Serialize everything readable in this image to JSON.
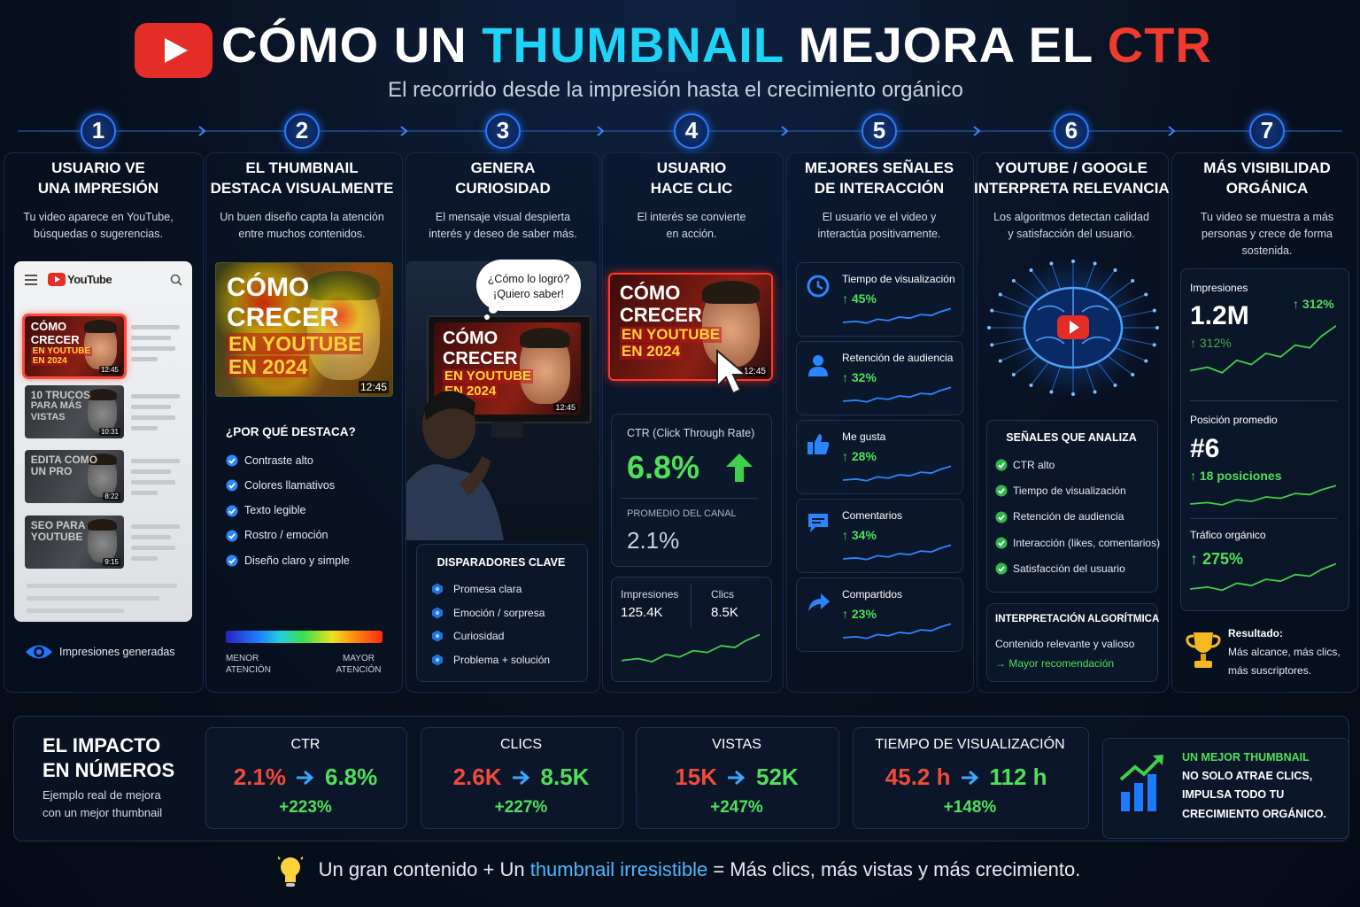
{
  "header": {
    "title": [
      "CÓMO UN ",
      "THUMBNAIL",
      " MEJORA EL ",
      "CTR"
    ],
    "subtitle": "El recorrido desde la impresión hasta el crecimiento orgánico"
  },
  "steps": [
    {
      "number": "1",
      "title": [
        "USUARIO VE",
        "UNA IMPRESIÓN"
      ],
      "description": [
        "Tu video aparece en YouTube,",
        "búsquedas o sugerencias."
      ]
    },
    {
      "number": "2",
      "title": [
        "EL THUMBNAIL",
        "DESTACA VISUALMENTE"
      ],
      "description": [
        "Un buen diseño capta la atención",
        "entre muchos contenidos."
      ]
    },
    {
      "number": "3",
      "title": [
        "GENERA",
        "CURIOSIDAD"
      ],
      "description": [
        "El mensaje visual despierta",
        "interés y deseo de saber más."
      ]
    },
    {
      "number": "4",
      "title": [
        "USUARIO",
        "HACE CLIC"
      ],
      "description": [
        "El interés se convierte",
        "en acción."
      ]
    },
    {
      "number": "5",
      "title": [
        "MEJORES SEÑALES",
        "DE INTERACCIÓN"
      ],
      "description": [
        "El usuario ve el video y",
        "interactúa positivamente."
      ]
    },
    {
      "number": "6",
      "title": [
        "YOUTUBE / GOOGLE",
        "INTERPRETA RELEVANCIA"
      ],
      "description": [
        "Los algoritmos detectan calidad",
        "y satisfacción del usuario."
      ]
    },
    {
      "number": "7",
      "title": [
        "MÁS VISIBILIDAD",
        "ORGÁNICA"
      ],
      "description": [
        "Tu video se muestra a más",
        "personas y crece de forma",
        "sostenida."
      ]
    }
  ],
  "feed": {
    "logo": "YouTube",
    "videos": [
      {
        "lines": [
          "CÓMO",
          "CRECER",
          "EN YOUTUBE",
          "EN 2024"
        ],
        "duration": "12:45"
      },
      {
        "lines": [
          "10 TRUCOS",
          "PARA MÁS",
          "VISTAS"
        ],
        "duration": "10:31"
      },
      {
        "lines": [
          "EDITA COMO",
          "UN PRO"
        ],
        "duration": "8:22"
      },
      {
        "lines": [
          "SEO PARA",
          "YOUTUBE"
        ],
        "duration": "9:15"
      }
    ],
    "caption": "Impresiones generadas"
  },
  "thumbnail": {
    "lines": [
      "CÓMO",
      "CRECER",
      "EN YOUTUBE",
      "EN 2024"
    ],
    "duration": "12:45"
  },
  "highlight": {
    "heading": "¿POR QUÉ DESTACA?",
    "items": [
      "Contraste alto",
      "Colores llamativos",
      "Texto legible",
      "Rostro / emoción",
      "Diseño claro y simple"
    ],
    "scale_low": [
      "MENOR",
      "ATENCIÓN"
    ],
    "scale_high": [
      "MAYOR",
      "ATENCIÓN"
    ]
  },
  "curiosity": {
    "bubble": [
      "¿Cómo lo logró?",
      "¡Quiero saber!"
    ],
    "heading": "DISPARADORES CLAVE",
    "items": [
      "Promesa clara",
      "Emoción / sorpresa",
      "Curiosidad",
      "Problema + solución"
    ]
  },
  "click": {
    "ctr_label": "CTR (Click Through Rate)",
    "ctr": "6.8%",
    "average_label": "PROMEDIO DEL CANAL",
    "average": "2.1%",
    "impressions_label": "Impresiones",
    "impressions": "125.4K",
    "clicks_label": "Clics",
    "clicks": "8.5K"
  },
  "signals": [
    {
      "label": "Tiempo de visualización",
      "change": "↑ 45%"
    },
    {
      "label": "Retención de audiencia",
      "change": "↑ 32%"
    },
    {
      "label": "Me gusta",
      "change": "↑ 28%"
    },
    {
      "label": "Comentarios",
      "change": "↑ 34%"
    },
    {
      "label": "Compartidos",
      "change": "↑ 23%"
    }
  ],
  "algorithm": {
    "heading": "SEÑALES QUE ANALIZA",
    "items": [
      "CTR alto",
      "Tiempo de visualización",
      "Retención de audiencia",
      "Interacción (likes, comentarios)",
      "Satisfacción del usuario"
    ],
    "interpretation_heading": "INTERPRETACIÓN ALGORÍTMICA",
    "interpretation": "Contenido relevante y valioso",
    "outcome": "→ Mayor recomendación"
  },
  "visibility": {
    "impressions": {
      "label": "Impresiones",
      "value": "1.2M",
      "badge": "↑ 312%",
      "change": "↑ 312%"
    },
    "position": {
      "label": "Posición promedio",
      "value": "#6",
      "change": "↑ 18 posiciones"
    },
    "traffic": {
      "label": "Tráfico orgánico",
      "change": "↑ 275%"
    },
    "result_label": "Resultado:",
    "result": [
      "Más alcance, más clics,",
      "más suscriptores."
    ]
  },
  "impact": {
    "title": [
      "EL IMPACTO",
      "EN NÚMEROS"
    ],
    "description": [
      "Ejemplo real de mejora",
      "con un mejor thumbnail"
    ],
    "metrics": [
      {
        "label": "CTR",
        "before": "2.1%",
        "after": "6.8%",
        "change": "+223%"
      },
      {
        "label": "CLICS",
        "before": "2.6K",
        "after": "8.5K",
        "change": "+227%"
      },
      {
        "label": "VISTAS",
        "before": "15K",
        "after": "52K",
        "change": "+247%"
      },
      {
        "label": "TIEMPO DE VISUALIZACIÓN",
        "before": "45.2 h",
        "after": "112 h",
        "change": "+148%"
      }
    ],
    "conclusion_highlight": "UN MEJOR THUMBNAIL",
    "conclusion": [
      "NO SOLO ATRAE CLICS,",
      "IMPULSA TODO TU",
      "CRECIMIENTO ORGÁNICO."
    ]
  },
  "footer": [
    "Un gran contenido + Un ",
    "thumbnail irresistible",
    " = Más clics, más vistas y más crecimiento."
  ]
}
